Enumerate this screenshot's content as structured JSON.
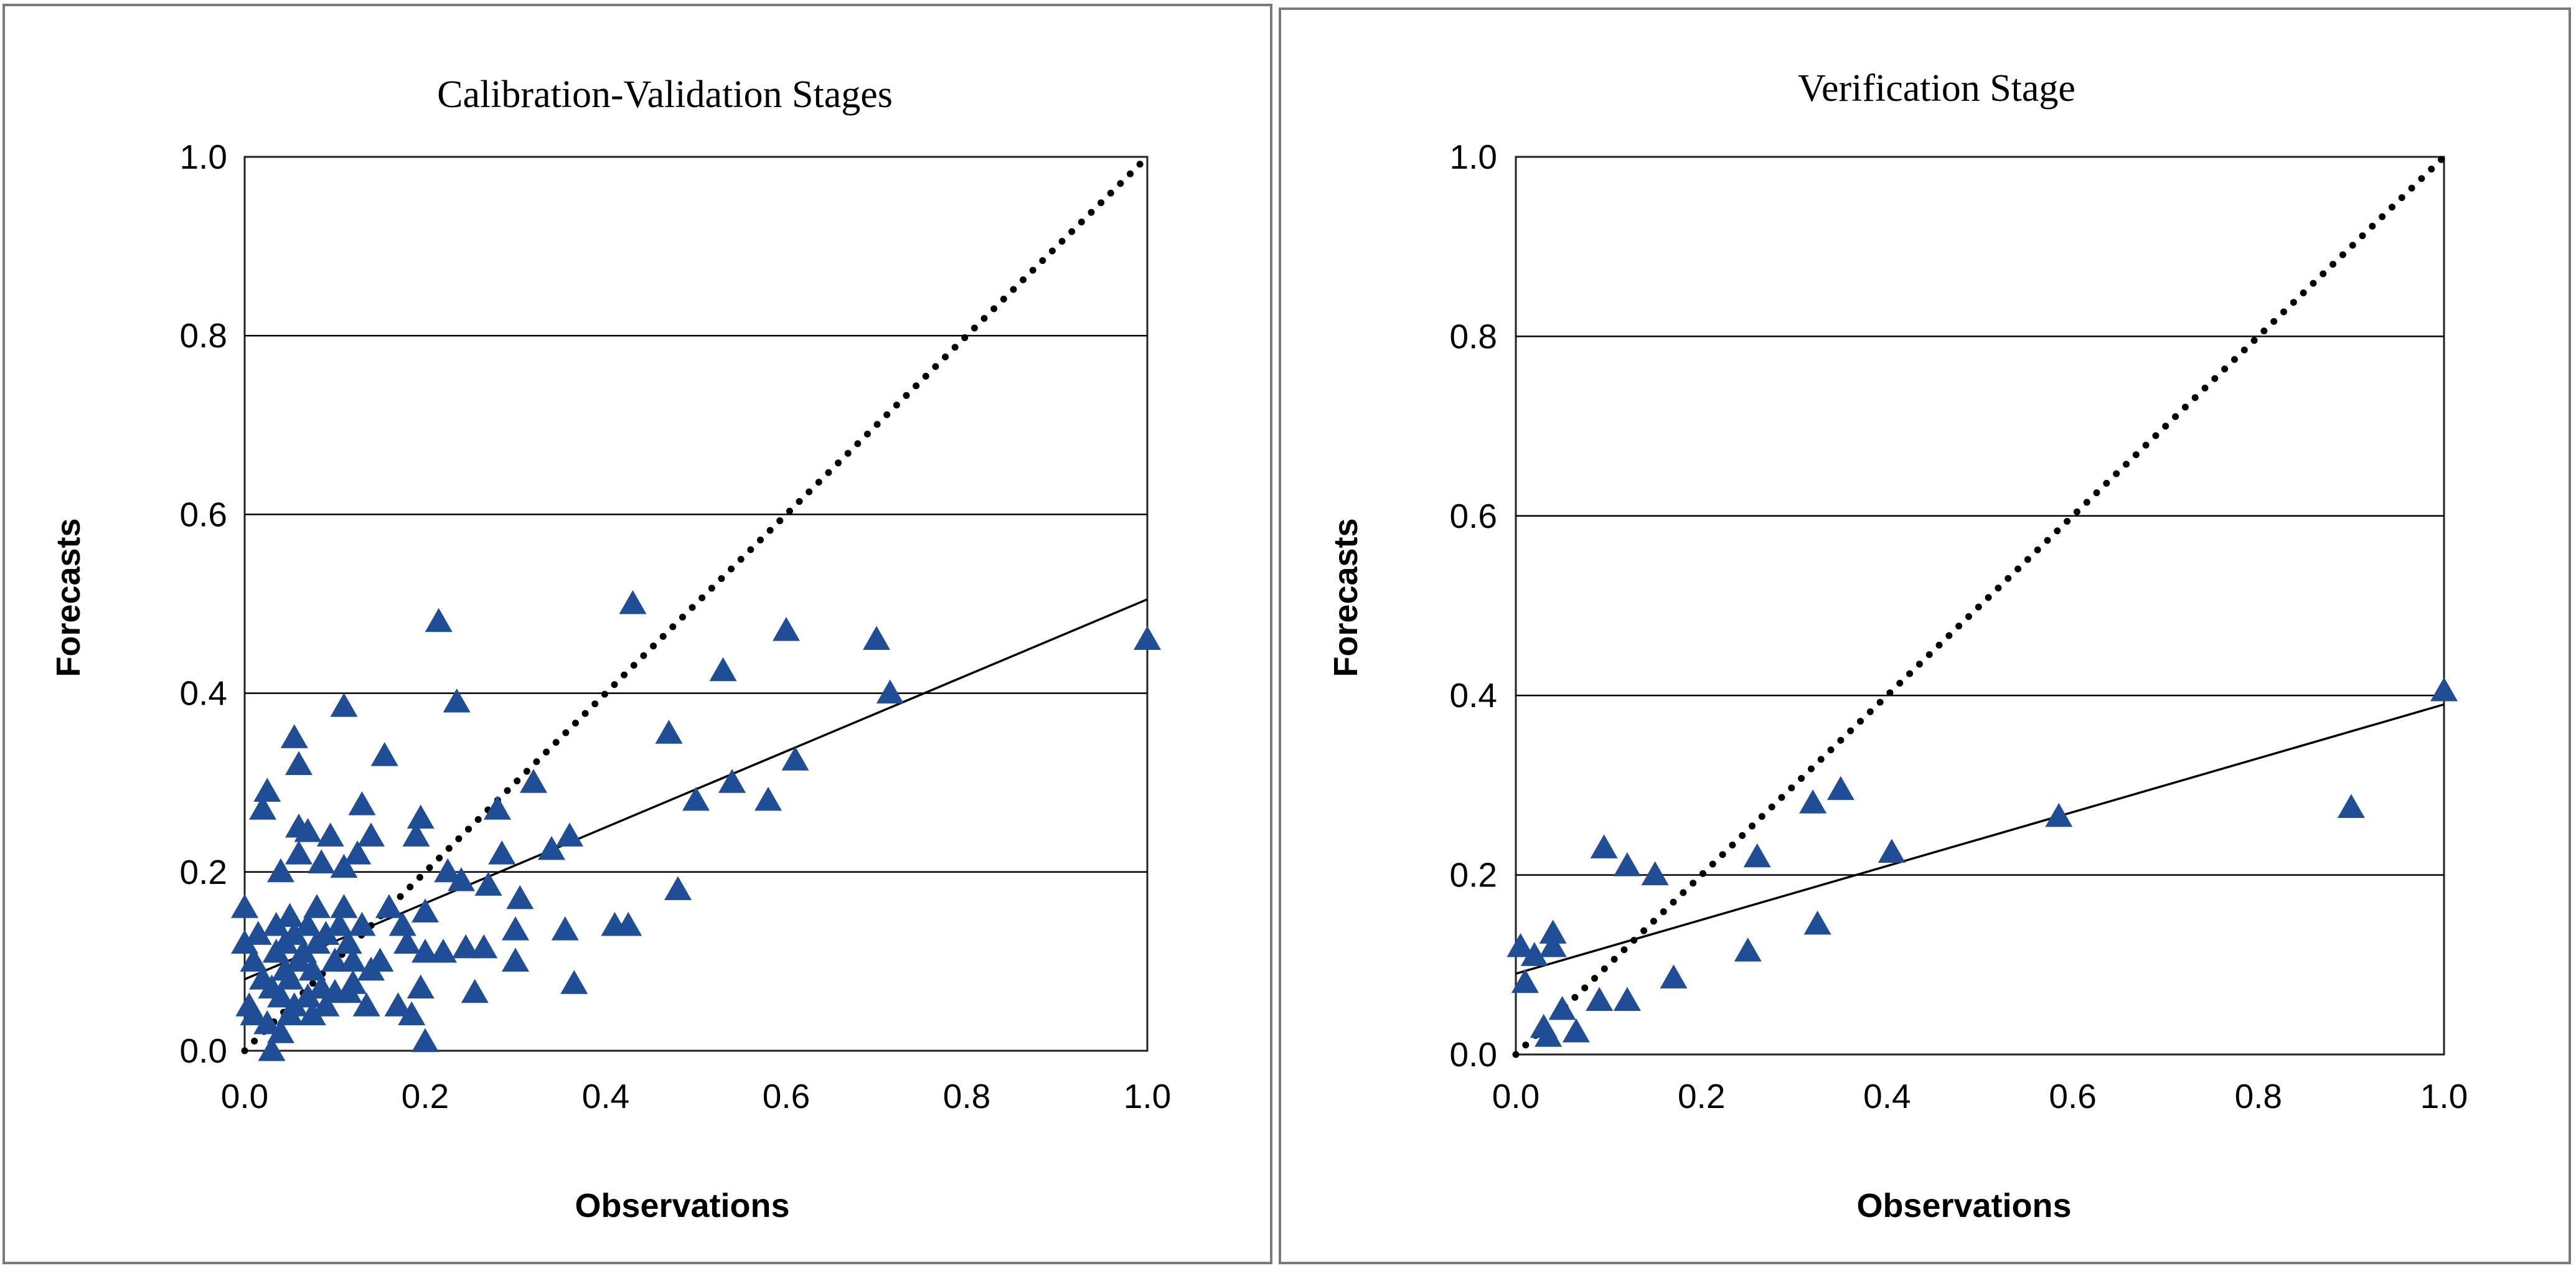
{
  "colors": {
    "marker": "#1f4e96",
    "background": "#ffffff"
  },
  "chart_data": [
    {
      "type": "scatter",
      "title": "Calibration-Validation Stages",
      "xlabel": "Observations",
      "ylabel": "Forecasts",
      "xlim": [
        0,
        1
      ],
      "ylim": [
        0,
        1
      ],
      "x_ticks": [
        "0.0",
        "0.2",
        "0.4",
        "0.6",
        "0.8",
        "1.0"
      ],
      "y_ticks": [
        "0.0",
        "0.2",
        "0.4",
        "0.6",
        "0.8",
        "1.0"
      ],
      "marker": "triangle",
      "grid": "horizontal",
      "identity_line": {
        "style": "dotted",
        "x": [
          0,
          1
        ],
        "y": [
          0,
          1
        ]
      },
      "fit_line": {
        "style": "solid",
        "x": [
          0,
          1
        ],
        "y": [
          0.08,
          0.505
        ]
      },
      "points": [
        [
          0.0,
          0.16
        ],
        [
          0.0,
          0.12
        ],
        [
          0.005,
          0.05
        ],
        [
          0.01,
          0.04
        ],
        [
          0.01,
          0.1
        ],
        [
          0.015,
          0.13
        ],
        [
          0.02,
          0.27
        ],
        [
          0.025,
          0.29
        ],
        [
          0.02,
          0.08
        ],
        [
          0.025,
          0.03
        ],
        [
          0.03,
          0.0
        ],
        [
          0.03,
          0.07
        ],
        [
          0.035,
          0.14
        ],
        [
          0.035,
          0.11
        ],
        [
          0.04,
          0.06
        ],
        [
          0.04,
          0.02
        ],
        [
          0.04,
          0.2
        ],
        [
          0.045,
          0.12
        ],
        [
          0.045,
          0.09
        ],
        [
          0.05,
          0.15
        ],
        [
          0.05,
          0.04
        ],
        [
          0.05,
          0.08
        ],
        [
          0.055,
          0.05
        ],
        [
          0.055,
          0.13
        ],
        [
          0.055,
          0.35
        ],
        [
          0.06,
          0.32
        ],
        [
          0.06,
          0.25
        ],
        [
          0.06,
          0.22
        ],
        [
          0.06,
          0.1
        ],
        [
          0.065,
          0.11
        ],
        [
          0.07,
          0.245
        ],
        [
          0.07,
          0.14
        ],
        [
          0.07,
          0.06
        ],
        [
          0.075,
          0.09
        ],
        [
          0.075,
          0.04
        ],
        [
          0.08,
          0.16
        ],
        [
          0.08,
          0.12
        ],
        [
          0.085,
          0.21
        ],
        [
          0.085,
          0.07
        ],
        [
          0.09,
          0.05
        ],
        [
          0.09,
          0.13
        ],
        [
          0.095,
          0.24
        ],
        [
          0.1,
          0.1
        ],
        [
          0.1,
          0.065
        ],
        [
          0.105,
          0.14
        ],
        [
          0.11,
          0.16
        ],
        [
          0.11,
          0.205
        ],
        [
          0.11,
          0.385
        ],
        [
          0.115,
          0.12
        ],
        [
          0.115,
          0.065
        ],
        [
          0.12,
          0.075
        ],
        [
          0.12,
          0.1
        ],
        [
          0.125,
          0.22
        ],
        [
          0.13,
          0.275
        ],
        [
          0.13,
          0.14
        ],
        [
          0.135,
          0.05
        ],
        [
          0.14,
          0.24
        ],
        [
          0.14,
          0.09
        ],
        [
          0.15,
          0.1
        ],
        [
          0.155,
          0.33
        ],
        [
          0.16,
          0.16
        ],
        [
          0.17,
          0.05
        ],
        [
          0.175,
          0.14
        ],
        [
          0.18,
          0.12
        ],
        [
          0.185,
          0.04
        ],
        [
          0.19,
          0.24
        ],
        [
          0.195,
          0.26
        ],
        [
          0.195,
          0.07
        ],
        [
          0.2,
          0.11
        ],
        [
          0.2,
          0.155
        ],
        [
          0.2,
          0.01
        ],
        [
          0.215,
          0.48
        ],
        [
          0.22,
          0.11
        ],
        [
          0.225,
          0.2
        ],
        [
          0.235,
          0.39
        ],
        [
          0.24,
          0.19
        ],
        [
          0.245,
          0.115
        ],
        [
          0.255,
          0.065
        ],
        [
          0.265,
          0.115
        ],
        [
          0.27,
          0.185
        ],
        [
          0.28,
          0.27
        ],
        [
          0.285,
          0.22
        ],
        [
          0.3,
          0.1
        ],
        [
          0.3,
          0.135
        ],
        [
          0.305,
          0.17
        ],
        [
          0.32,
          0.3
        ],
        [
          0.34,
          0.225
        ],
        [
          0.355,
          0.135
        ],
        [
          0.36,
          0.24
        ],
        [
          0.365,
          0.075
        ],
        [
          0.41,
          0.14
        ],
        [
          0.425,
          0.14
        ],
        [
          0.43,
          0.5
        ],
        [
          0.47,
          0.355
        ],
        [
          0.48,
          0.18
        ],
        [
          0.5,
          0.28
        ],
        [
          0.53,
          0.425
        ],
        [
          0.54,
          0.3
        ],
        [
          0.58,
          0.28
        ],
        [
          0.6,
          0.47
        ],
        [
          0.61,
          0.325
        ],
        [
          0.7,
          0.46
        ],
        [
          0.715,
          0.4
        ],
        [
          1.0,
          0.46
        ]
      ]
    },
    {
      "type": "scatter",
      "title": "Verification Stage",
      "xlabel": "Observations",
      "ylabel": "Forecasts",
      "xlim": [
        0,
        1
      ],
      "ylim": [
        0,
        1
      ],
      "x_ticks": [
        "0.0",
        "0.2",
        "0.4",
        "0.6",
        "0.8",
        "1.0"
      ],
      "y_ticks": [
        "0.0",
        "0.2",
        "0.4",
        "0.6",
        "0.8",
        "1.0"
      ],
      "marker": "triangle",
      "grid": "horizontal",
      "identity_line": {
        "style": "dotted",
        "x": [
          0,
          1
        ],
        "y": [
          0,
          1
        ]
      },
      "fit_line": {
        "style": "solid",
        "x": [
          0,
          1
        ],
        "y": [
          0.09,
          0.39
        ]
      },
      "points": [
        [
          0.005,
          0.12
        ],
        [
          0.01,
          0.08
        ],
        [
          0.02,
          0.11
        ],
        [
          0.03,
          0.03
        ],
        [
          0.035,
          0.02
        ],
        [
          0.04,
          0.12
        ],
        [
          0.04,
          0.135
        ],
        [
          0.05,
          0.05
        ],
        [
          0.065,
          0.025
        ],
        [
          0.09,
          0.06
        ],
        [
          0.095,
          0.23
        ],
        [
          0.12,
          0.21
        ],
        [
          0.12,
          0.06
        ],
        [
          0.15,
          0.2
        ],
        [
          0.17,
          0.085
        ],
        [
          0.25,
          0.115
        ],
        [
          0.26,
          0.22
        ],
        [
          0.32,
          0.28
        ],
        [
          0.325,
          0.145
        ],
        [
          0.35,
          0.295
        ],
        [
          0.405,
          0.225
        ],
        [
          0.585,
          0.265
        ],
        [
          0.9,
          0.275
        ],
        [
          1.0,
          0.405
        ]
      ]
    }
  ]
}
